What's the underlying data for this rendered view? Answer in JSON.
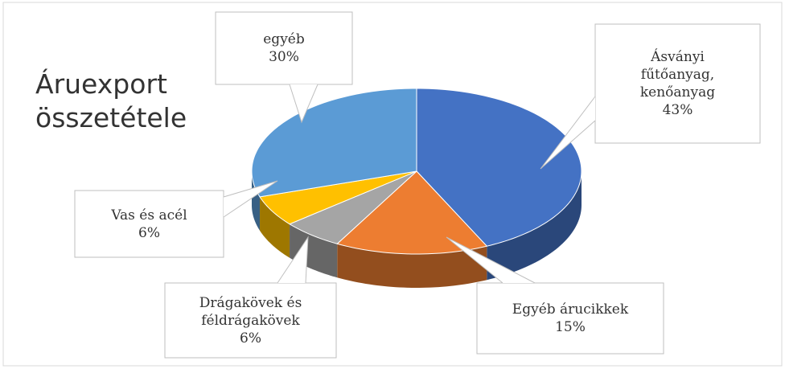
{
  "chart_data": {
    "type": "pie3d",
    "title": "Áruexport összetétele",
    "categories": [
      "Ásványi fűtőanyag, kenőanyag",
      "Egyéb árucikkek",
      "Drágakövek és féldrágakövek",
      "Vas és acél",
      "egyéb"
    ],
    "values": [
      43,
      15,
      6,
      6,
      30
    ],
    "value_labels": [
      "43%",
      "15%",
      "6%",
      "6%",
      "30%"
    ],
    "colors": [
      "#4472c4",
      "#ed7d31",
      "#a5a5a5",
      "#ffc000",
      "#5b9bd5"
    ]
  }
}
